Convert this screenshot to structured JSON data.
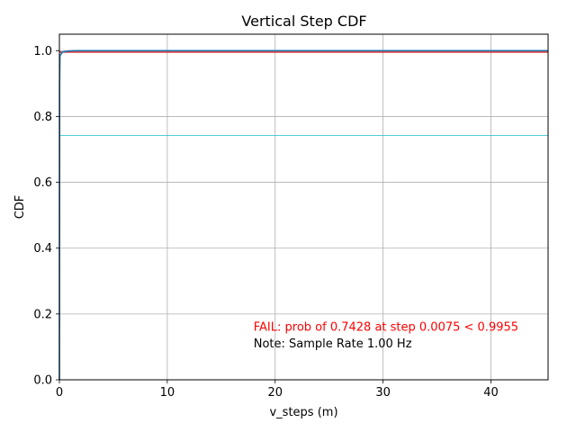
{
  "chart_data": {
    "type": "line",
    "title": "Vertical Step CDF",
    "xlabel": "v_steps (m)",
    "ylabel": "CDF",
    "xlim": [
      0,
      45.3
    ],
    "ylim": [
      0,
      1.05
    ],
    "xticks": [
      0,
      10,
      20,
      30,
      40
    ],
    "yticks": [
      0.0,
      0.2,
      0.4,
      0.6,
      0.8,
      1.0
    ],
    "xtick_labels": [
      "0",
      "10",
      "20",
      "30",
      "40"
    ],
    "ytick_labels": [
      "0.0",
      "0.2",
      "0.4",
      "0.6",
      "0.8",
      "1.0"
    ],
    "grid": true,
    "series": [
      {
        "color": "#1f77b4",
        "points": [
          [
            0,
            0
          ],
          [
            0.02,
            0.9
          ],
          [
            0.05,
            0.985
          ],
          [
            0.3,
            0.996
          ],
          [
            0.8,
            0.999
          ],
          [
            1.5,
            1.0
          ],
          [
            45.3,
            1.0
          ]
        ]
      }
    ],
    "reference_lines": [
      {
        "orientation": "horizontal",
        "y": 0.9955,
        "color": "#d62728"
      },
      {
        "orientation": "horizontal",
        "y": 0.7428,
        "color": "#17becf"
      }
    ],
    "annotations": [
      {
        "text": "FAIL: prob of 0.7428 at step 0.0075 < 0.9955",
        "x": 18,
        "y": 0.16,
        "color": "#ff0000"
      },
      {
        "text": "Note: Sample Rate 1.00 Hz",
        "x": 18,
        "y": 0.11,
        "color": "#000000"
      }
    ]
  }
}
